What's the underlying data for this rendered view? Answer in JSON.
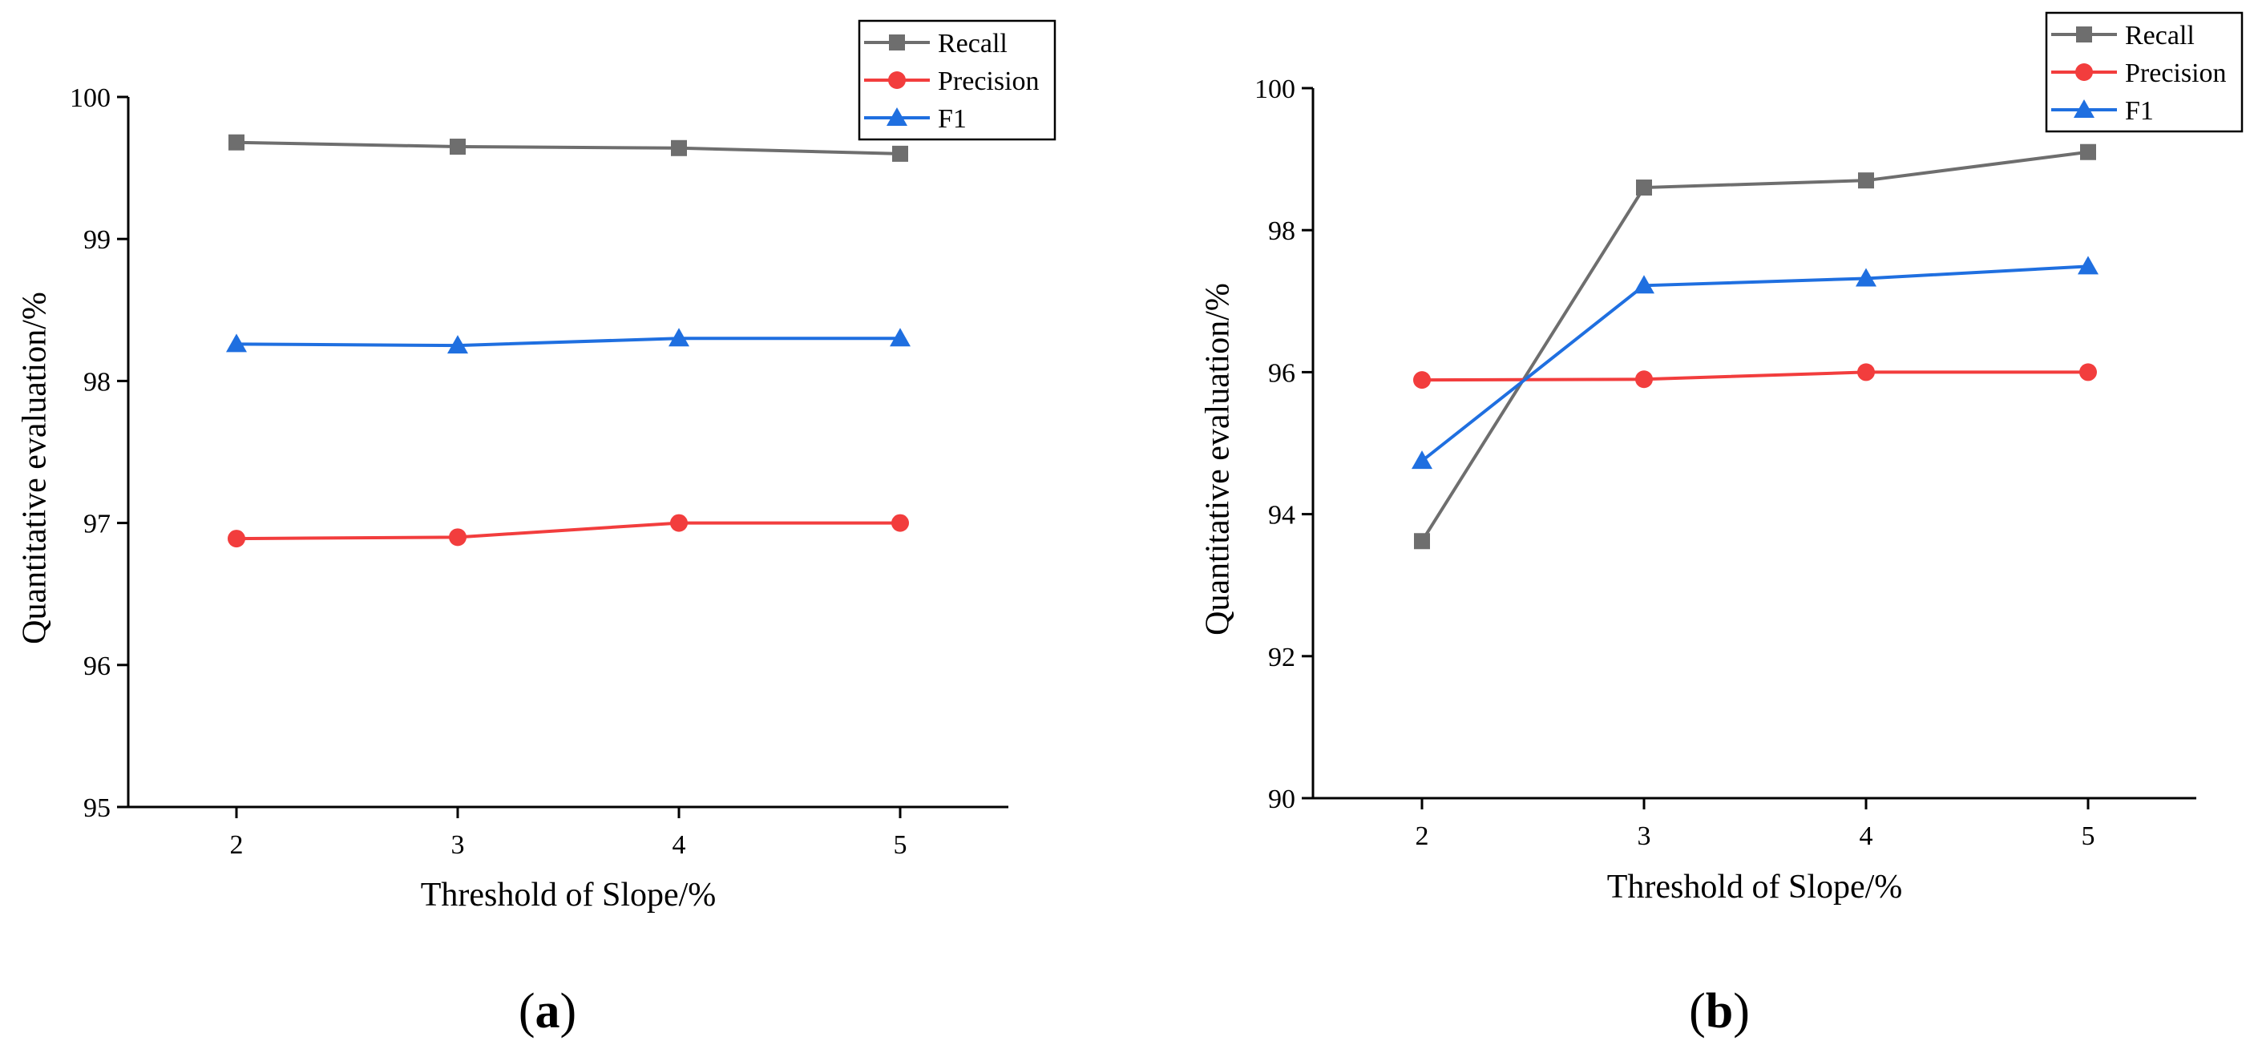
{
  "chart_data": [
    {
      "type": "line",
      "panel_label": "(a)",
      "panel_letter": "a",
      "xlabel": "Threshold of Slope/%",
      "ylabel": "Quantitative evaluation/%",
      "categories": [
        2,
        3,
        4,
        5
      ],
      "xtick_labels": [
        "2",
        "3",
        "4",
        "5"
      ],
      "ylim": [
        95,
        100
      ],
      "ytick_labels": [
        "95",
        "96",
        "97",
        "98",
        "99",
        "100"
      ],
      "yticks": [
        95,
        96,
        97,
        98,
        99,
        100
      ],
      "legend_position": "top-right",
      "series": [
        {
          "name": "Recall",
          "marker": "square",
          "color": "#6e6e6e",
          "values": [
            99.68,
            99.65,
            99.64,
            99.6
          ]
        },
        {
          "name": "Precision",
          "marker": "circle",
          "color": "#f23d3d",
          "values": [
            96.89,
            96.9,
            97.0,
            97.0
          ]
        },
        {
          "name": "F1",
          "marker": "triangle",
          "color": "#1f6fe0",
          "values": [
            98.26,
            98.25,
            98.3,
            98.3
          ]
        }
      ]
    },
    {
      "type": "line",
      "panel_label": "(b)",
      "panel_letter": "b",
      "xlabel": "Threshold of Slope/%",
      "ylabel": "Quantitative evaluation/%",
      "categories": [
        2,
        3,
        4,
        5
      ],
      "xtick_labels": [
        "2",
        "3",
        "4",
        "5"
      ],
      "ylim": [
        90,
        100
      ],
      "ytick_labels": [
        "90",
        "92",
        "94",
        "96",
        "98",
        "100"
      ],
      "yticks": [
        90,
        92,
        94,
        96,
        98,
        100
      ],
      "legend_position": "top-right",
      "series": [
        {
          "name": "Recall",
          "marker": "square",
          "color": "#6e6e6e",
          "values": [
            93.62,
            98.6,
            98.7,
            99.1
          ]
        },
        {
          "name": "Precision",
          "marker": "circle",
          "color": "#f23d3d",
          "values": [
            95.89,
            95.9,
            96.0,
            96.0
          ]
        },
        {
          "name": "F1",
          "marker": "triangle",
          "color": "#1f6fe0",
          "values": [
            94.75,
            97.22,
            97.32,
            97.49
          ]
        }
      ]
    }
  ]
}
